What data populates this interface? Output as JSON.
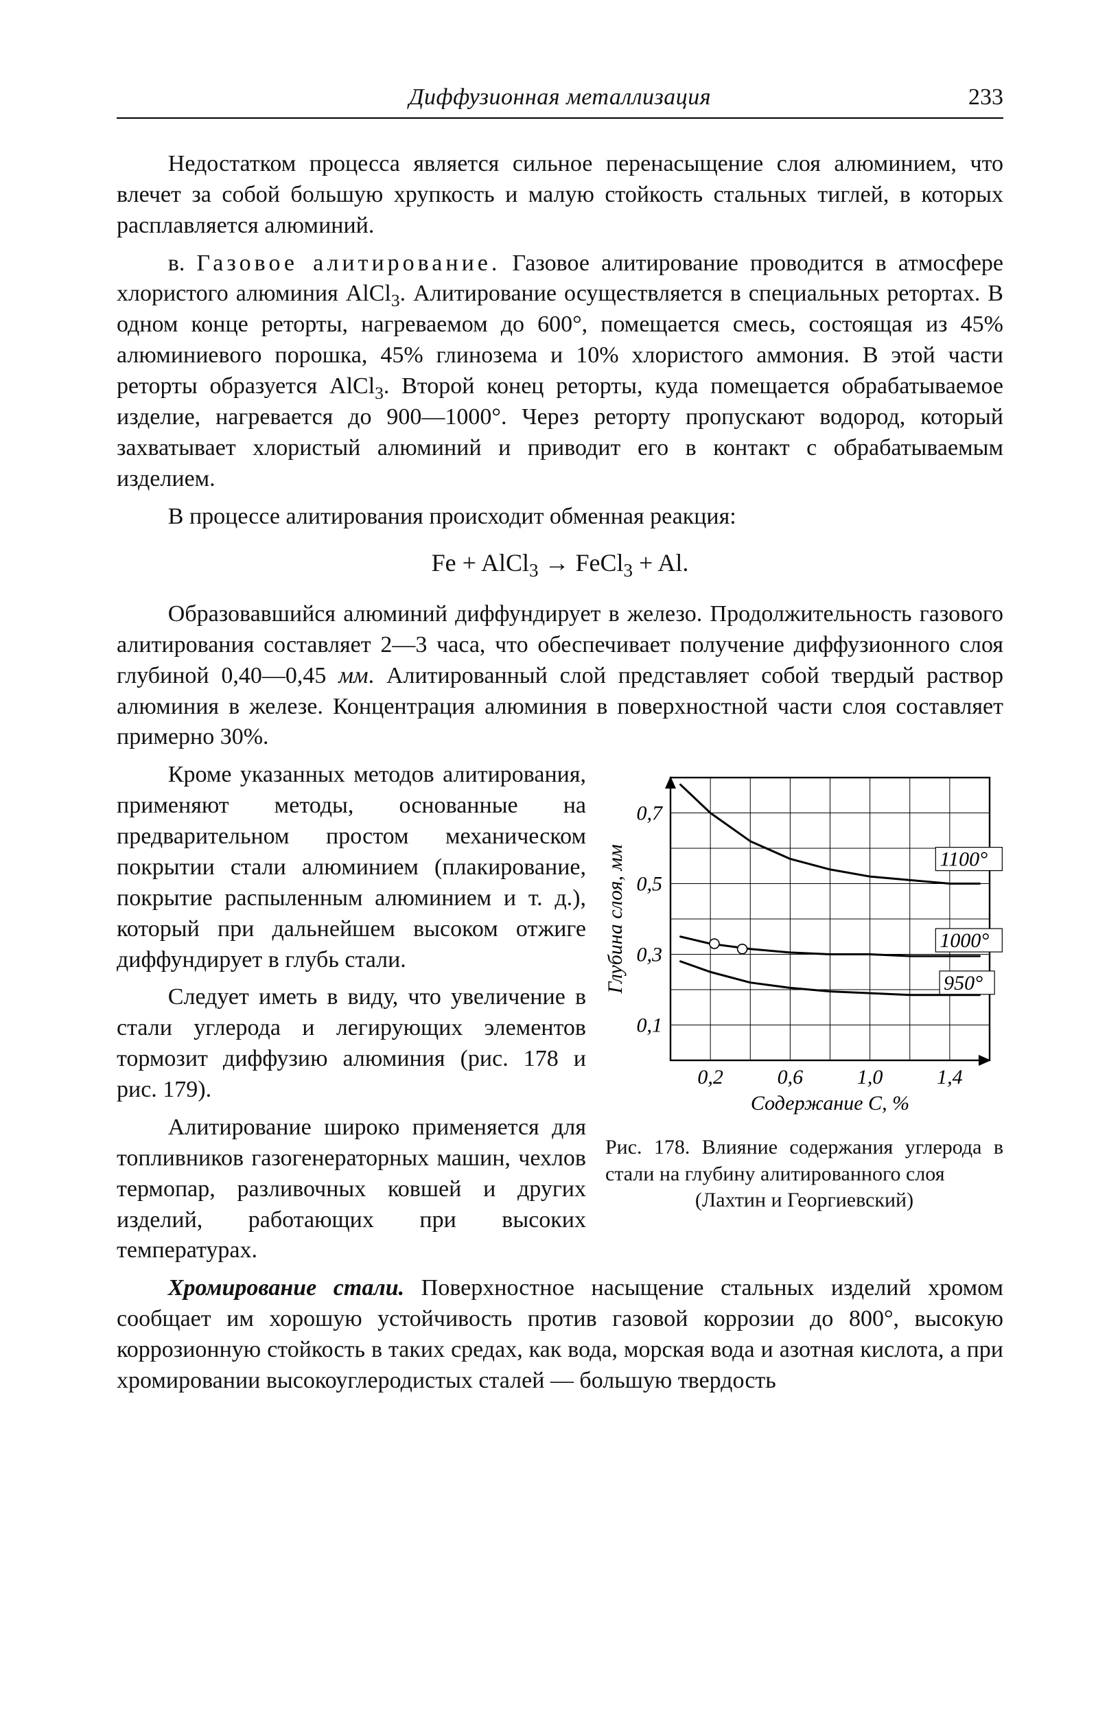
{
  "header": {
    "running_title": "Диффузионная металлизация",
    "page_number": "233"
  },
  "paragraphs": {
    "p1": "Недостатком процесса является сильное перенасыщение слоя алюминием, что влечет за собой большую хрупкость и малую стойкость стальных тиглей, в которых расплавляется алюминий.",
    "p2_lead": "в. ",
    "p2_spaced": "Газовое алитирование.",
    "p2_rest": " Газовое алитирование проводится в атмосфере хлористого алюминия AlCl",
    "p2_sub1": "3",
    "p2_rest2": ". Алитирование осуществляется в специальных ретортах. В одном конце реторты, нагреваемом до 600°, помещается смесь, состоящая из 45% алюминиевого порошка, 45% глинозема и 10% хлористого аммония. В этой части реторты образуется AlCl",
    "p2_sub2": "3",
    "p2_rest3": ". Второй конец реторты, куда помещается обрабатываемое изделие, нагревается до 900—1000°. Через реторту пропускают водород, который захватывает хлористый алюминий и приводит его в контакт с обрабатываемым изделием.",
    "p3": "В процессе алитирования происходит обменная реакция:",
    "equation_pre": "Fe + AlCl",
    "equation_sub1": "3",
    "equation_mid": " → FeCl",
    "equation_sub2": "3",
    "equation_post": " + Al.",
    "p4": "Образовавшийся алюминий диффундирует в железо. Продолжительность газового алитирования составляет 2—3 часа, что обеспечивает получение диффузионного слоя глубиной 0,40—0,45 ",
    "p4_ital": "мм",
    "p4_b": ". Алитированный слой представляет собой твердый раствор алюминия в железе. Концентрация алюминия в поверхностной части слоя составляет примерно 30%.",
    "p5": "Кроме указанных методов алитирования, применяют методы, основанные на предварительном простом механическом покрытии стали алюминием (плакирование, покрытие распыленным алюминием и т. д.), который при дальнейшем высоком отжиге диффундирует в глубь стали.",
    "p6": "Следует иметь в виду, что увеличение в стали углерода и легирующих элементов тормозит диффузию алюминия (рис. 178 и рис. 179).",
    "p7": "Алитирование широко применяется для топливников газогенераторных машин, чехлов термопар, разливочных ковшей и других изделий, работающих при высоких температурах.",
    "p8_lead": "Хромирование стали.",
    "p8_rest": " Поверхностное насыщение стальных изделий хромом сообщает им хорошую устойчивость против газовой коррозии до 800°, высокую коррозионную стойкость в таких средах, как вода, морская вода и азотная кислота, а при хромировании высокоуглеродистых сталей — большую твердость"
  },
  "figure": {
    "type": "line",
    "xlabel": "Содержание С, %",
    "ylabel": "Глубина слоя, мм",
    "ylabel_fontstyle": "italic",
    "x_ticks": [
      "0,2",
      "0,6",
      "1,0",
      "1,4"
    ],
    "y_ticks": [
      "0,1",
      "0,3",
      "0,5",
      "0,7"
    ],
    "xlim": [
      0.0,
      1.6
    ],
    "ylim": [
      0.0,
      0.8
    ],
    "grid_x": [
      0.2,
      0.4,
      0.6,
      0.8,
      1.0,
      1.2,
      1.4
    ],
    "grid_y": [
      0.1,
      0.2,
      0.3,
      0.4,
      0.5,
      0.6,
      0.7
    ],
    "series": [
      {
        "name": "1100",
        "label": "1100°",
        "label_xy": [
          1.35,
          0.56
        ],
        "points": [
          [
            0.05,
            0.78
          ],
          [
            0.2,
            0.7
          ],
          [
            0.4,
            0.62
          ],
          [
            0.6,
            0.57
          ],
          [
            0.8,
            0.54
          ],
          [
            1.0,
            0.52
          ],
          [
            1.2,
            0.51
          ],
          [
            1.4,
            0.5
          ],
          [
            1.55,
            0.5
          ]
        ]
      },
      {
        "name": "1000",
        "label": "1000°",
        "label_xy": [
          1.35,
          0.33
        ],
        "points": [
          [
            0.05,
            0.35
          ],
          [
            0.2,
            0.33
          ],
          [
            0.4,
            0.315
          ],
          [
            0.6,
            0.305
          ],
          [
            0.8,
            0.3
          ],
          [
            1.0,
            0.3
          ],
          [
            1.2,
            0.295
          ],
          [
            1.4,
            0.295
          ],
          [
            1.55,
            0.295
          ]
        ]
      },
      {
        "name": "950",
        "label": "950°",
        "label_xy": [
          1.37,
          0.21
        ],
        "points": [
          [
            0.05,
            0.28
          ],
          [
            0.2,
            0.25
          ],
          [
            0.4,
            0.22
          ],
          [
            0.6,
            0.205
          ],
          [
            0.8,
            0.195
          ],
          [
            1.0,
            0.19
          ],
          [
            1.2,
            0.185
          ],
          [
            1.4,
            0.185
          ],
          [
            1.55,
            0.185
          ]
        ]
      }
    ],
    "markers": [
      [
        0.22,
        0.33
      ],
      [
        0.36,
        0.315
      ]
    ],
    "line_color": "#000000",
    "line_width": 3.0,
    "marker_style": "open-circle",
    "marker_size": 7,
    "grid_color": "#000000",
    "grid_width": 1.0,
    "frame_width": 2.4,
    "background_color": "#ffffff",
    "axis_font_size": 30,
    "label_font_size": 30,
    "caption_pre": "Рис. 178. Влияние содержания углерода в стали на глубину алитированного слоя",
    "caption_last": "(Лахтин и Георгиевский)"
  }
}
